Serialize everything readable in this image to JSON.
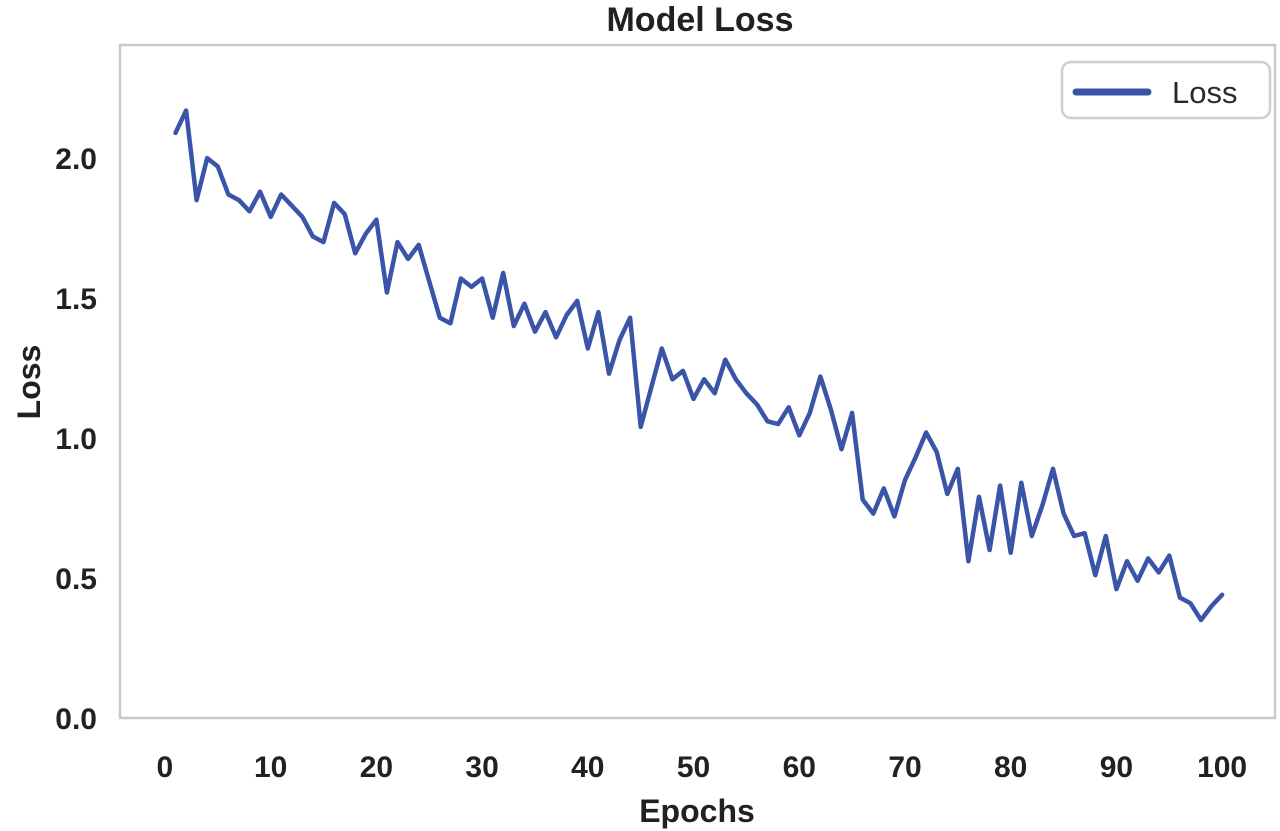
{
  "chart_data": {
    "type": "line",
    "title": "Model Loss",
    "xlabel": "Epochs",
    "ylabel": "Loss",
    "legend_position": "upper right",
    "grid": false,
    "line_color": "#3A54A8",
    "spine_color": "#c9c9c9",
    "text_color": "#212121",
    "xlim": [
      -4.25,
      105
    ],
    "ylim": [
      0,
      2.404
    ],
    "xticks": [
      0,
      10,
      20,
      30,
      40,
      50,
      60,
      70,
      80,
      90,
      100
    ],
    "ytick_labels": [
      "0.0",
      "0.5",
      "1.0",
      "1.5",
      "2.0"
    ],
    "x": [
      1,
      2,
      3,
      4,
      5,
      6,
      7,
      8,
      9,
      10,
      11,
      12,
      13,
      14,
      15,
      16,
      17,
      18,
      19,
      20,
      21,
      22,
      23,
      24,
      25,
      26,
      27,
      28,
      29,
      30,
      31,
      32,
      33,
      34,
      35,
      36,
      37,
      38,
      39,
      40,
      41,
      42,
      43,
      44,
      45,
      46,
      47,
      48,
      49,
      50,
      51,
      52,
      53,
      54,
      55,
      56,
      57,
      58,
      59,
      60,
      61,
      62,
      63,
      64,
      65,
      66,
      67,
      68,
      69,
      70,
      71,
      72,
      73,
      74,
      75,
      76,
      77,
      78,
      79,
      80,
      81,
      82,
      83,
      84,
      85,
      86,
      87,
      88,
      89,
      90,
      91,
      92,
      93,
      94,
      95,
      96,
      97,
      98,
      99,
      100
    ],
    "series": [
      {
        "name": "Loss",
        "values": [
          2.09,
          2.17,
          1.85,
          2.0,
          1.97,
          1.87,
          1.85,
          1.81,
          1.88,
          1.79,
          1.87,
          1.83,
          1.79,
          1.72,
          1.7,
          1.84,
          1.8,
          1.66,
          1.73,
          1.78,
          1.52,
          1.7,
          1.64,
          1.69,
          1.56,
          1.43,
          1.41,
          1.57,
          1.54,
          1.57,
          1.43,
          1.59,
          1.4,
          1.48,
          1.38,
          1.45,
          1.36,
          1.44,
          1.49,
          1.32,
          1.45,
          1.23,
          1.35,
          1.43,
          1.04,
          1.18,
          1.32,
          1.21,
          1.24,
          1.14,
          1.21,
          1.16,
          1.28,
          1.21,
          1.16,
          1.12,
          1.06,
          1.05,
          1.11,
          1.01,
          1.09,
          1.22,
          1.1,
          0.96,
          1.09,
          0.78,
          0.73,
          0.82,
          0.72,
          0.85,
          0.93,
          1.02,
          0.95,
          0.8,
          0.89,
          0.56,
          0.79,
          0.6,
          0.83,
          0.59,
          0.84,
          0.65,
          0.76,
          0.89,
          0.73,
          0.65,
          0.66,
          0.51,
          0.65,
          0.46,
          0.56,
          0.49,
          0.57,
          0.52,
          0.58,
          0.43,
          0.41,
          0.35,
          0.4,
          0.44
        ]
      }
    ]
  }
}
